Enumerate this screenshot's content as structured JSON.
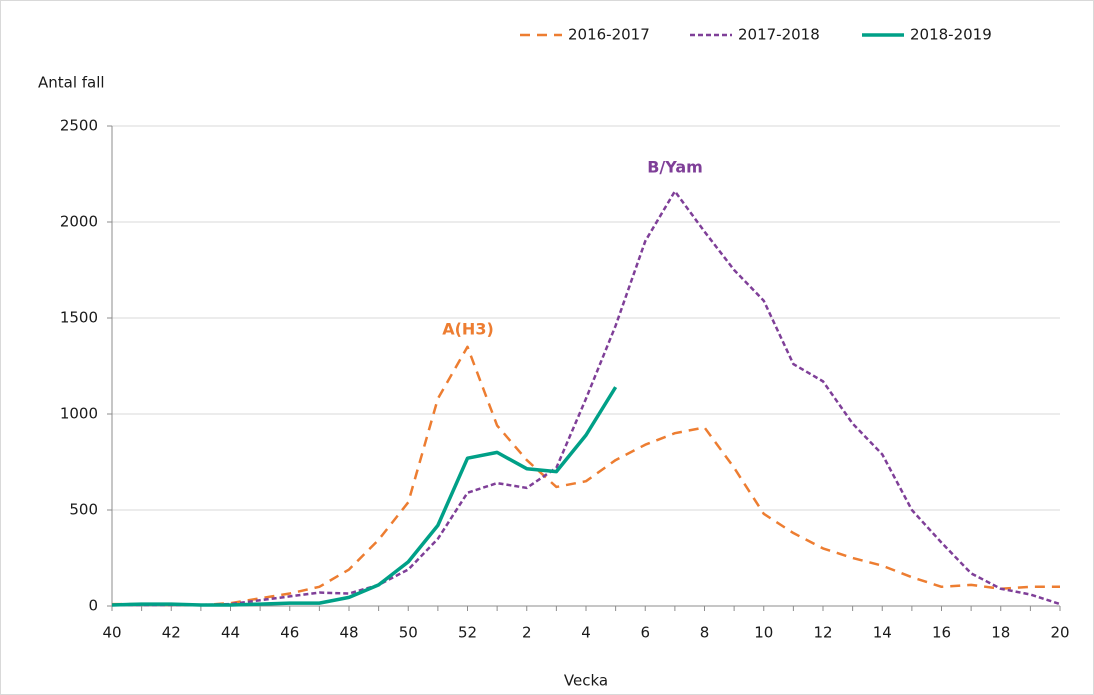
{
  "chart_data": {
    "type": "line",
    "y_label": "Antal fall",
    "x_label": "Vecka",
    "categories": [
      "40",
      null,
      "42",
      null,
      "44",
      null,
      "46",
      null,
      "48",
      null,
      "50",
      null,
      "52",
      null,
      "2",
      null,
      "4",
      null,
      "6",
      null,
      "8",
      null,
      "10",
      null,
      "12",
      null,
      "14",
      null,
      "16",
      null,
      "18",
      null,
      "20"
    ],
    "series": [
      {
        "name": "2016-2017",
        "color": "#ed7d31",
        "linestyle": "dashed",
        "values": [
          10,
          10,
          5,
          5,
          15,
          40,
          65,
          100,
          190,
          345,
          540,
          1080,
          1350,
          940,
          760,
          620,
          650,
          760,
          840,
          900,
          930,
          720,
          480,
          380,
          300,
          250,
          210,
          150,
          100,
          110,
          90,
          100,
          100
        ]
      },
      {
        "name": "2017-2018",
        "color": "#7f3f98",
        "linestyle": "dotted",
        "values": [
          5,
          5,
          5,
          5,
          10,
          30,
          50,
          70,
          65,
          110,
          190,
          350,
          590,
          640,
          615,
          720,
          1080,
          1460,
          1900,
          2160,
          1950,
          1750,
          1590,
          1260,
          1170,
          950,
          790,
          500,
          330,
          170,
          90,
          60,
          10
        ]
      },
      {
        "name": "2018-2019",
        "color": "#00a087",
        "linestyle": "solid",
        "values": [
          5,
          10,
          10,
          5,
          5,
          10,
          15,
          15,
          45,
          110,
          230,
          420,
          770,
          800,
          715,
          700,
          890,
          1140,
          null,
          null,
          null,
          null,
          null,
          null,
          null,
          null,
          null,
          null,
          null,
          null,
          null,
          null,
          null
        ]
      }
    ],
    "annotations": [
      {
        "text": "A(H3)",
        "color": "#ed7d31"
      },
      {
        "text": "B/Yam",
        "color": "#7f3f98"
      }
    ],
    "ylim": [
      0,
      2500
    ],
    "yticks": [
      0,
      500,
      1000,
      1500,
      2000,
      2500
    ],
    "grid": true,
    "legend": "top-right"
  }
}
